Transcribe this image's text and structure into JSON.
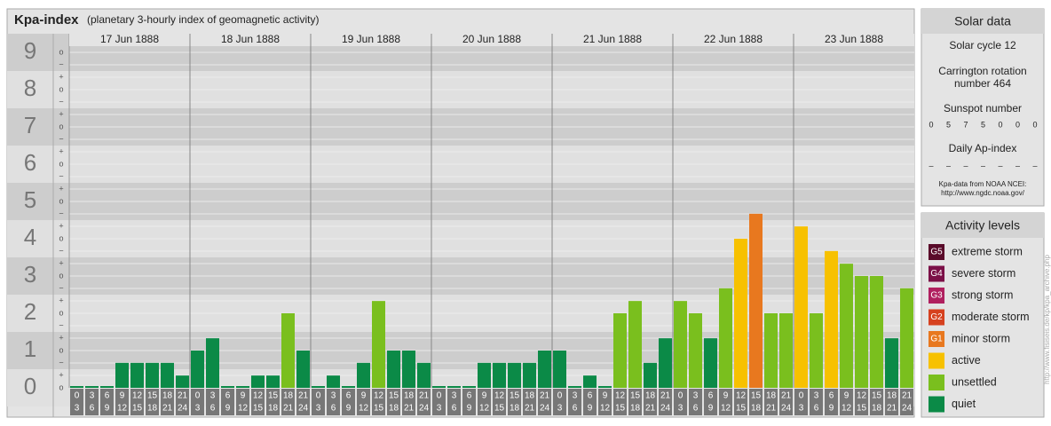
{
  "chart_data": {
    "type": "bar",
    "title": "Kpa-index",
    "subtitle": "(planetary 3-hourly index of geomagnetic activity)",
    "ylim": [
      0,
      9.5
    ],
    "yticks": [
      0,
      1,
      2,
      3,
      4,
      5,
      6,
      7,
      8,
      9
    ],
    "ysubticks": [
      "−",
      "o",
      "+"
    ],
    "hours": [
      [
        0,
        3
      ],
      [
        3,
        6
      ],
      [
        6,
        9
      ],
      [
        9,
        12
      ],
      [
        12,
        15
      ],
      [
        15,
        18
      ],
      [
        18,
        21
      ],
      [
        21,
        24
      ]
    ],
    "days": [
      {
        "label": "17 Jun 1888",
        "values": [
          0,
          0,
          0,
          0.67,
          0.67,
          0.67,
          0.67,
          0.33
        ],
        "colors": [
          "#0b8a47",
          "#0b8a47",
          "#0b8a47",
          "#0b8a47",
          "#0b8a47",
          "#0b8a47",
          "#0b8a47",
          "#0b8a47"
        ]
      },
      {
        "label": "18 Jun 1888",
        "values": [
          1,
          1.33,
          0,
          0,
          0.33,
          0.33,
          2,
          1
        ],
        "colors": [
          "#0b8a47",
          "#0b8a47",
          "#0b8a47",
          "#0b8a47",
          "#0b8a47",
          "#0b8a47",
          "#7abf1e",
          "#0b8a47"
        ]
      },
      {
        "label": "19 Jun 1888",
        "values": [
          0,
          0.33,
          0,
          0.67,
          2.33,
          1,
          1,
          0.67
        ],
        "colors": [
          "#0b8a47",
          "#0b8a47",
          "#0b8a47",
          "#0b8a47",
          "#7abf1e",
          "#0b8a47",
          "#0b8a47",
          "#0b8a47"
        ]
      },
      {
        "label": "20 Jun 1888",
        "values": [
          0,
          0,
          0,
          0.67,
          0.67,
          0.67,
          0.67,
          1
        ],
        "colors": [
          "#0b8a47",
          "#0b8a47",
          "#0b8a47",
          "#0b8a47",
          "#0b8a47",
          "#0b8a47",
          "#0b8a47",
          "#0b8a47"
        ]
      },
      {
        "label": "21 Jun 1888",
        "values": [
          1,
          0,
          0.33,
          0,
          2,
          2.33,
          0.67,
          1.33
        ],
        "colors": [
          "#0b8a47",
          "#0b8a47",
          "#0b8a47",
          "#0b8a47",
          "#7abf1e",
          "#7abf1e",
          "#0b8a47",
          "#0b8a47"
        ]
      },
      {
        "label": "22 Jun 1888",
        "values": [
          2.33,
          2,
          1.33,
          2.67,
          4,
          4.67,
          2,
          2
        ],
        "colors": [
          "#7abf1e",
          "#7abf1e",
          "#0b8a47",
          "#7abf1e",
          "#f7c100",
          "#e8781f",
          "#7abf1e",
          "#7abf1e"
        ]
      },
      {
        "label": "23 Jun 1888",
        "values": [
          4.33,
          2,
          3.67,
          3.33,
          3,
          3,
          1.33,
          2.67
        ],
        "colors": [
          "#f7c100",
          "#7abf1e",
          "#f7c100",
          "#7abf1e",
          "#7abf1e",
          "#7abf1e",
          "#0b8a47",
          "#7abf1e"
        ]
      }
    ]
  },
  "solar_data": {
    "title": "Solar data",
    "cycle": "Solar cycle 12",
    "carrington": [
      "Carrington rotation",
      "number 464"
    ],
    "sunspot_label": "Sunspot number",
    "sunspots": [
      0,
      5,
      7,
      5,
      0,
      0,
      0
    ],
    "ap_label": "Daily Ap-index",
    "ap": [
      "–",
      "–",
      "–",
      "–",
      "–",
      "–",
      "–"
    ],
    "source": [
      "Kpa-data from NOAA NCEI:",
      "http://www.ngdc.noaa.gov/"
    ]
  },
  "activity_levels": {
    "title": "Activity levels",
    "items": [
      {
        "code": "G5",
        "label": "extreme storm",
        "color": "#5a0b2a"
      },
      {
        "code": "G4",
        "label": "severe storm",
        "color": "#7b1047"
      },
      {
        "code": "G3",
        "label": "strong storm",
        "color": "#b0205f"
      },
      {
        "code": "G2",
        "label": "moderate storm",
        "color": "#d6411f"
      },
      {
        "code": "G1",
        "label": "minor storm",
        "color": "#e8781f"
      },
      {
        "label": "active",
        "color": "#f7c100"
      },
      {
        "label": "unsettled",
        "color": "#7abf1e"
      },
      {
        "label": "quiet",
        "color": "#0b8a47"
      }
    ]
  },
  "side_url": "http://www.fisiseis.de/kp/kpa_archive.php"
}
